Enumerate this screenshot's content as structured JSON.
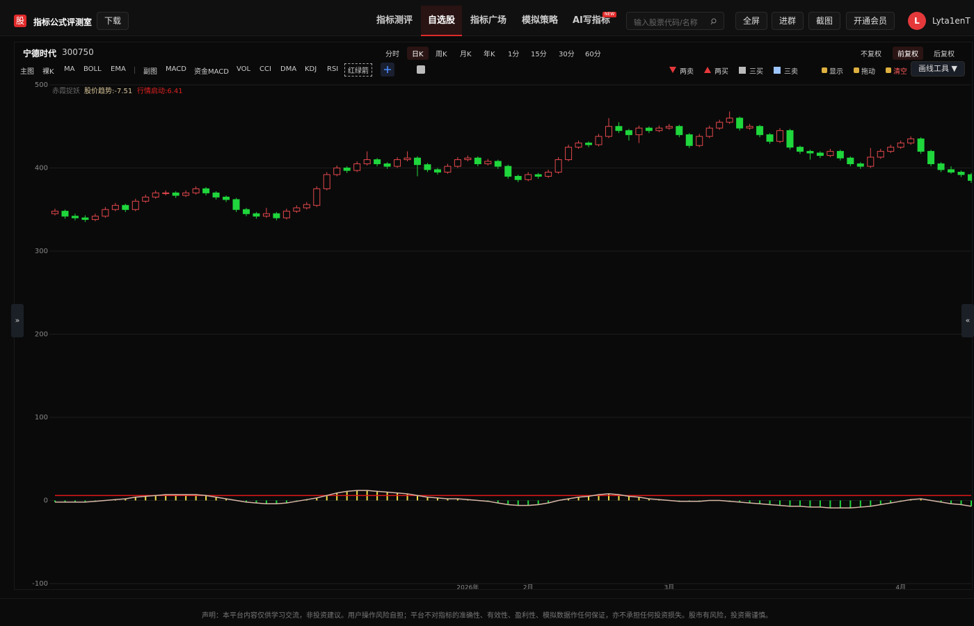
{
  "header": {
    "logo": "股",
    "title": "指标公式评测室",
    "download": "下载",
    "nav": [
      {
        "label": "指标测评",
        "active": false
      },
      {
        "label": "自选股",
        "active": true
      },
      {
        "label": "指标广场",
        "active": false
      },
      {
        "label": "模拟策略",
        "active": false
      },
      {
        "label": "AI写指标",
        "active": false
      }
    ],
    "badge": "NEW",
    "search_placeholder": "输入股票代码/名称",
    "actions": [
      "全屏",
      "进群",
      "截图",
      "开通会员"
    ],
    "avatar": "L",
    "user": "Lyta1enT"
  },
  "toolbar": {
    "stock_name": "宁德时代",
    "stock_code": "300750",
    "periods": [
      {
        "label": "分时",
        "active": false
      },
      {
        "label": "日K",
        "active": true
      },
      {
        "label": "周K",
        "active": false
      },
      {
        "label": "月K",
        "active": false
      },
      {
        "label": "年K",
        "active": false
      },
      {
        "label": "1分",
        "active": false
      },
      {
        "label": "15分",
        "active": false
      },
      {
        "label": "30分",
        "active": false
      },
      {
        "label": "60分",
        "active": false
      }
    ],
    "adjust": [
      {
        "label": "不复权",
        "active": false
      },
      {
        "label": "前复权",
        "active": true
      },
      {
        "label": "后复权",
        "active": false
      }
    ],
    "main": [
      "主图",
      "裸K",
      "MA",
      "BOLL",
      "EMA"
    ],
    "sub": [
      "副图",
      "MACD",
      "资金MACD",
      "VOL",
      "CCI",
      "DMA",
      "KDJ",
      "RSI"
    ],
    "selected": "红绿箭",
    "signals": [
      "两卖",
      "两买",
      "三买",
      "三卖"
    ],
    "controls": [
      "显示",
      "拖动",
      "清空"
    ],
    "draw_tool": "画线工具 ▼"
  },
  "chart_data": {
    "type": "candlestick",
    "legend": [
      "赤霞捉妖",
      "股价趋势:-7.51",
      "行情启动:6.41"
    ],
    "ylim": [
      -100,
      500
    ],
    "yticks": [
      -100,
      0,
      100,
      200,
      300,
      400,
      500
    ],
    "grid": true,
    "colors": {
      "up": "#e5484d",
      "down": "#1fd63c",
      "bar_pos": "#f2df4a",
      "bar_neg": "#1fd63c",
      "line": "#d9b8a8",
      "threshold": "#e01818"
    },
    "threshold": 6,
    "candles": [
      [
        345,
        351,
        343,
        348
      ],
      [
        348,
        350,
        339,
        342
      ],
      [
        342,
        345,
        337,
        340
      ],
      [
        340,
        343,
        335,
        338
      ],
      [
        338,
        345,
        336,
        342
      ],
      [
        342,
        353,
        340,
        350
      ],
      [
        350,
        358,
        348,
        355
      ],
      [
        355,
        357,
        347,
        350
      ],
      [
        350,
        363,
        348,
        360
      ],
      [
        360,
        368,
        358,
        365
      ],
      [
        365,
        373,
        363,
        370
      ],
      [
        370,
        373,
        367,
        370
      ],
      [
        370,
        372,
        364,
        367
      ],
      [
        367,
        373,
        365,
        370
      ],
      [
        370,
        378,
        368,
        375
      ],
      [
        375,
        377,
        367,
        370
      ],
      [
        370,
        372,
        362,
        365
      ],
      [
        365,
        367,
        359,
        362
      ],
      [
        362,
        364,
        347,
        350
      ],
      [
        350,
        352,
        342,
        345
      ],
      [
        345,
        347,
        339,
        342
      ],
      [
        342,
        352,
        340,
        345
      ],
      [
        345,
        347,
        337,
        340
      ],
      [
        340,
        351,
        338,
        348
      ],
      [
        348,
        355,
        346,
        352
      ],
      [
        352,
        359,
        350,
        356
      ],
      [
        355,
        378,
        353,
        375
      ],
      [
        375,
        395,
        373,
        392
      ],
      [
        392,
        403,
        390,
        400
      ],
      [
        400,
        402,
        394,
        397
      ],
      [
        397,
        408,
        395,
        405
      ],
      [
        405,
        420,
        403,
        410
      ],
      [
        410,
        412,
        402,
        405
      ],
      [
        405,
        407,
        399,
        402
      ],
      [
        402,
        413,
        400,
        410
      ],
      [
        410,
        420,
        408,
        412
      ],
      [
        412,
        414,
        390,
        404
      ],
      [
        404,
        406,
        395,
        398
      ],
      [
        398,
        400,
        392,
        395
      ],
      [
        395,
        405,
        393,
        402
      ],
      [
        402,
        413,
        400,
        410
      ],
      [
        410,
        415,
        408,
        412
      ],
      [
        412,
        414,
        402,
        405
      ],
      [
        405,
        411,
        403,
        408
      ],
      [
        408,
        410,
        399,
        402
      ],
      [
        402,
        404,
        387,
        390
      ],
      [
        390,
        392,
        383,
        386
      ],
      [
        386,
        395,
        384,
        392
      ],
      [
        392,
        394,
        387,
        390
      ],
      [
        390,
        398,
        388,
        395
      ],
      [
        395,
        413,
        393,
        410
      ],
      [
        410,
        428,
        408,
        425
      ],
      [
        425,
        433,
        423,
        430
      ],
      [
        430,
        432,
        425,
        428
      ],
      [
        428,
        441,
        426,
        438
      ],
      [
        438,
        460,
        436,
        450
      ],
      [
        450,
        455,
        442,
        445
      ],
      [
        445,
        447,
        433,
        440
      ],
      [
        440,
        451,
        430,
        448
      ],
      [
        448,
        450,
        442,
        445
      ],
      [
        445,
        451,
        443,
        448
      ],
      [
        448,
        453,
        446,
        450
      ],
      [
        450,
        452,
        437,
        440
      ],
      [
        440,
        442,
        424,
        427
      ],
      [
        427,
        441,
        425,
        438
      ],
      [
        438,
        451,
        436,
        448
      ],
      [
        448,
        458,
        446,
        455
      ],
      [
        455,
        468,
        453,
        460
      ],
      [
        460,
        462,
        445,
        448
      ],
      [
        448,
        453,
        446,
        450
      ],
      [
        450,
        452,
        437,
        440
      ],
      [
        440,
        442,
        429,
        432
      ],
      [
        432,
        448,
        430,
        445
      ],
      [
        445,
        447,
        422,
        425
      ],
      [
        425,
        427,
        417,
        420
      ],
      [
        420,
        422,
        410,
        418
      ],
      [
        418,
        420,
        412,
        415
      ],
      [
        415,
        423,
        413,
        420
      ],
      [
        420,
        422,
        409,
        412
      ],
      [
        412,
        414,
        402,
        405
      ],
      [
        405,
        407,
        399,
        402
      ],
      [
        402,
        424,
        400,
        413
      ],
      [
        413,
        423,
        411,
        420
      ],
      [
        420,
        428,
        418,
        425
      ],
      [
        425,
        433,
        423,
        430
      ],
      [
        430,
        438,
        428,
        435
      ],
      [
        435,
        437,
        417,
        420
      ],
      [
        420,
        422,
        402,
        405
      ],
      [
        405,
        407,
        395,
        398
      ],
      [
        398,
        402,
        393,
        395
      ],
      [
        395,
        397,
        389,
        392
      ],
      [
        392,
        394,
        382,
        385
      ]
    ],
    "indicator": [
      -2,
      -2,
      -2,
      -2,
      -1,
      0,
      1,
      2,
      4,
      5,
      6,
      7,
      7,
      7,
      7,
      6,
      4,
      2,
      0,
      -2,
      -3,
      -4,
      -4,
      -3,
      -1,
      1,
      3,
      6,
      9,
      11,
      12,
      12,
      11,
      10,
      9,
      8,
      6,
      4,
      3,
      2,
      2,
      1,
      0,
      -1,
      -3,
      -5,
      -6,
      -6,
      -5,
      -3,
      0,
      2,
      4,
      5,
      7,
      8,
      7,
      5,
      4,
      2,
      1,
      0,
      -1,
      -1,
      -1,
      0,
      0,
      -1,
      -2,
      -3,
      -4,
      -5,
      -6,
      -7,
      -7,
      -8,
      -8,
      -9,
      -9,
      -9,
      -8,
      -7,
      -5,
      -3,
      -1,
      1,
      2,
      0,
      -2,
      -4,
      -5,
      -7
    ],
    "x_labels": [
      null,
      null,
      null,
      null,
      null,
      null,
      null,
      null,
      null,
      null,
      null,
      null,
      null,
      null,
      null,
      null,
      null,
      null,
      null,
      null,
      null,
      null,
      null,
      null,
      null,
      null,
      null,
      null,
      null,
      null,
      null,
      null,
      null,
      null,
      null,
      null,
      null,
      null,
      null,
      null,
      null,
      "2026年",
      null,
      null,
      null,
      null,
      null,
      "2月",
      null,
      null,
      null,
      null,
      null,
      null,
      null,
      null,
      null,
      null,
      null,
      null,
      null,
      "3月",
      null,
      null,
      null,
      null,
      null,
      null,
      null,
      null,
      null,
      null,
      null,
      null,
      null,
      null,
      null,
      null,
      null,
      null,
      null,
      null,
      null,
      null,
      "4月",
      null,
      null,
      null,
      null,
      null,
      null,
      null
    ]
  },
  "side": {
    "left": "»",
    "right": "«"
  },
  "footer": "声明：本平台内容仅供学习交流，非投资建议。用户操作风险自担；平台不对指标的准确性、有效性、盈利性、模拟数据作任何保证，亦不承担任何投资损失。股市有风险，投资需谨慎。"
}
